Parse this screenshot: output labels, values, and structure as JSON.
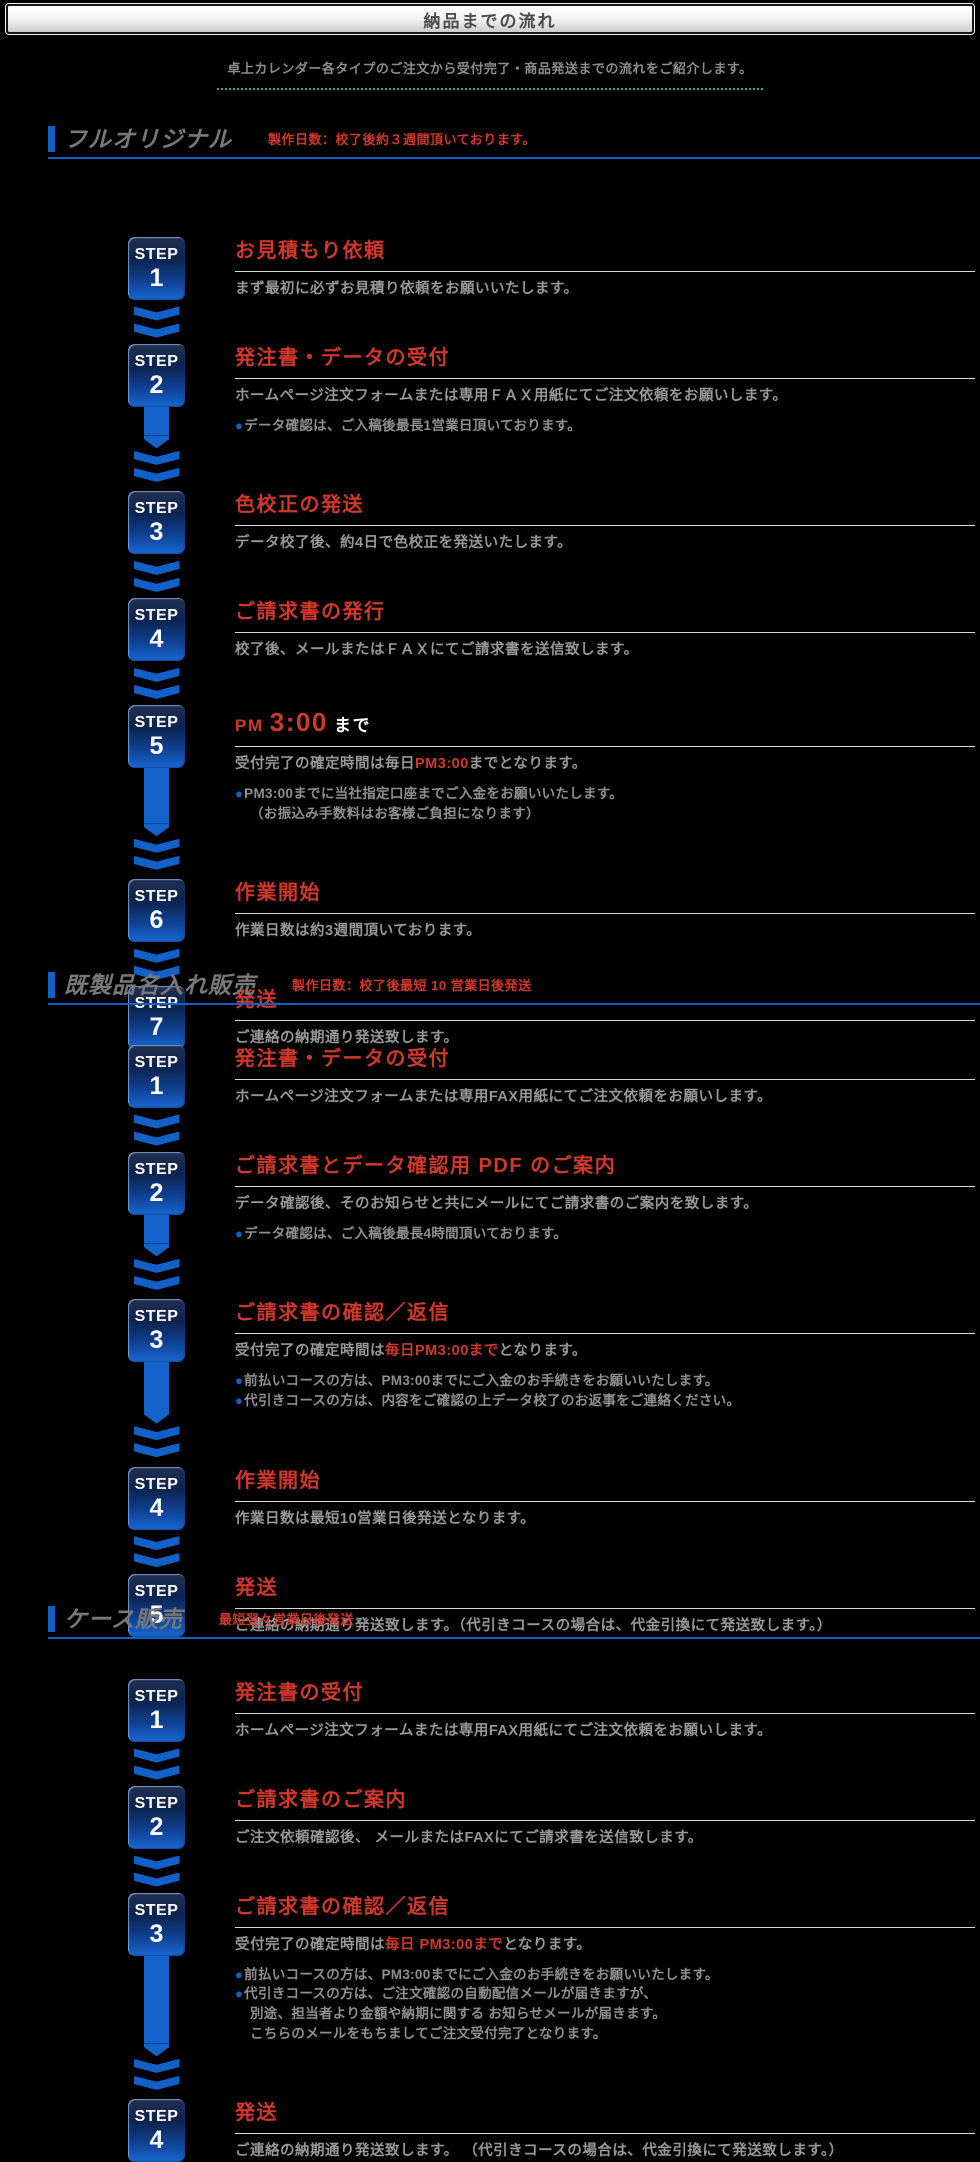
{
  "page": {
    "title": "納品までの流れ",
    "intro": "卓上カレンダー各タイプのご注文から受付完了・商品発送までの流れをご紹介します。",
    "step_label": "STEP"
  },
  "colors": {
    "accent_blue": "#1261c8",
    "title_red": "#cf382a",
    "body_gray": "#979797",
    "intro_dotted_teal": "#2faa9b"
  },
  "sections": [
    {
      "title": "フルオリジナル",
      "note": "製作日数：校了後約３週間頂いております。",
      "steps": [
        {
          "num": "1",
          "title": [
            {
              "t": "お見積もり依頼"
            }
          ],
          "body": [
            {
              "t": "まず最初に必ずお見積り依頼をお願いいたします。"
            }
          ],
          "notes": [],
          "arrow": "short"
        },
        {
          "num": "2",
          "title": [
            {
              "t": "発注書・データの受付"
            }
          ],
          "body": [
            {
              "t": "ホームページ注文フォームまたは専用ＦＡＸ用紙にてご注文依頼をお願いします。"
            }
          ],
          "notes": [
            {
              "bullet": true,
              "text": "データ確認は、ご入稿後最長1営業日頂いております。"
            }
          ],
          "arrow": "long"
        },
        {
          "num": "3",
          "title": [
            {
              "t": "色校正の発送"
            }
          ],
          "body": [
            {
              "t": "データ校了後、約4日で色校正を発送いたします。"
            }
          ],
          "notes": [],
          "arrow": "short"
        },
        {
          "num": "4",
          "title": [
            {
              "t": "ご請求書の発行"
            }
          ],
          "body": [
            {
              "t": "校了後、メールまたはＦＡＸにてご請求書を送信致します。"
            }
          ],
          "notes": [],
          "arrow": "short"
        },
        {
          "num": "5",
          "title": [
            {
              "t": "PM ",
              "cls": "t-red-sm"
            },
            {
              "t": "3:00",
              "cls": "t-red-lg"
            },
            {
              "t": " まで",
              "cls": "t-white-sm"
            }
          ],
          "body": [
            {
              "t": "受付完了の確定時間は毎日"
            },
            {
              "t": "PM3:00",
              "red": true
            },
            {
              "t": "までとなります。"
            }
          ],
          "notes": [
            {
              "bullet": true,
              "text": "PM3:00までに当社指定口座までご入金をお願いいたします。"
            },
            {
              "bullet": false,
              "text": "（お振込み手数料はお客様ご負担になります）"
            }
          ],
          "arrow": "long"
        },
        {
          "num": "6",
          "title": [
            {
              "t": "作業開始"
            }
          ],
          "body": [
            {
              "t": "作業日数は約3週間頂いております。"
            }
          ],
          "notes": [],
          "arrow": "short"
        },
        {
          "num": "7",
          "title": [
            {
              "t": "発送"
            }
          ],
          "body": [
            {
              "t": "ご連絡の納期通り発送致します。"
            }
          ],
          "notes": [],
          "arrow": "none"
        }
      ]
    },
    {
      "title": "既製品名入れ販売",
      "note": "製作日数：校了後最短 10 営業日後発送",
      "steps": [
        {
          "num": "1",
          "title": [
            {
              "t": "発注書・データの受付"
            }
          ],
          "body": [
            {
              "t": "ホームページ注文フォームまたは専用FAX用紙にてご注文依頼をお願いします。"
            }
          ],
          "notes": [],
          "arrow": "short"
        },
        {
          "num": "2",
          "title": [
            {
              "t": "ご請求書とデータ確認用 PDF のご案内"
            }
          ],
          "body": [
            {
              "t": "データ確認後、そのお知らせと共にメールにてご請求書のご案内を致します。"
            }
          ],
          "notes": [
            {
              "bullet": true,
              "text": "データ確認は、ご入稿後最長4時間頂いております。"
            }
          ],
          "arrow": "long"
        },
        {
          "num": "3",
          "title": [
            {
              "t": "ご請求書の確認／返信"
            }
          ],
          "body": [
            {
              "t": "受付完了の確定時間は"
            },
            {
              "t": "毎日PM3:00まで",
              "red": true
            },
            {
              "t": "となります。"
            }
          ],
          "notes": [
            {
              "bullet": true,
              "text": "前払いコースの方は、PM3:00までにご入金のお手続きをお願いいたします。"
            },
            {
              "bullet": true,
              "text": "代引きコースの方は、内容をご確認の上データ校了のお返事をご連絡ください。"
            }
          ],
          "arrow": "long"
        },
        {
          "num": "4",
          "title": [
            {
              "t": "作業開始"
            }
          ],
          "body": [
            {
              "t": "作業日数は最短10営業日後発送となります。"
            }
          ],
          "notes": [],
          "arrow": "short"
        },
        {
          "num": "5",
          "title": [
            {
              "t": "発送"
            }
          ],
          "body": [
            {
              "t": "ご連絡の納期通り発送致します。（代引きコースの場合は、代金引換にて発送致します。）"
            }
          ],
          "notes": [],
          "arrow": "none"
        }
      ]
    },
    {
      "title": "ケース販売",
      "note": "最短翌々営業日後発送",
      "steps": [
        {
          "num": "1",
          "title": [
            {
              "t": "発注書の受付"
            }
          ],
          "body": [
            {
              "t": "ホームページ注文フォームまたは専用FAX用紙にてご注文依頼をお願いします。"
            }
          ],
          "notes": [],
          "arrow": "short"
        },
        {
          "num": "2",
          "title": [
            {
              "t": "ご請求書のご案内"
            }
          ],
          "body": [
            {
              "t": "ご注文依頼確認後、 メールまたはFAXにてご請求書を送信致します。"
            }
          ],
          "notes": [],
          "arrow": "short"
        },
        {
          "num": "3",
          "title": [
            {
              "t": "ご請求書の確認／返信"
            }
          ],
          "body": [
            {
              "t": "受付完了の確定時間は"
            },
            {
              "t": "毎日 PM3:00まで",
              "red": true
            },
            {
              "t": "となります。"
            }
          ],
          "notes": [
            {
              "bullet": true,
              "text": "前払いコースの方は、PM3:00までにご入金のお手続きをお願いいたします。"
            },
            {
              "bullet": true,
              "text": "代引きコースの方は、ご注文確認の自動配信メールが届きますが、"
            },
            {
              "bullet": false,
              "text": "別途、担当者より金額や納期に関する お知らせメールが届きます。"
            },
            {
              "bullet": false,
              "text": "こちらのメールをもちましてご注文受付完了となります。"
            }
          ],
          "arrow": "long"
        },
        {
          "num": "4",
          "title": [
            {
              "t": "発送"
            }
          ],
          "body": [
            {
              "t": "ご連絡の納期通り発送致します。 （代引きコースの場合は、代金引換にて発送致します。）"
            }
          ],
          "notes": [],
          "arrow": "none"
        }
      ]
    }
  ]
}
